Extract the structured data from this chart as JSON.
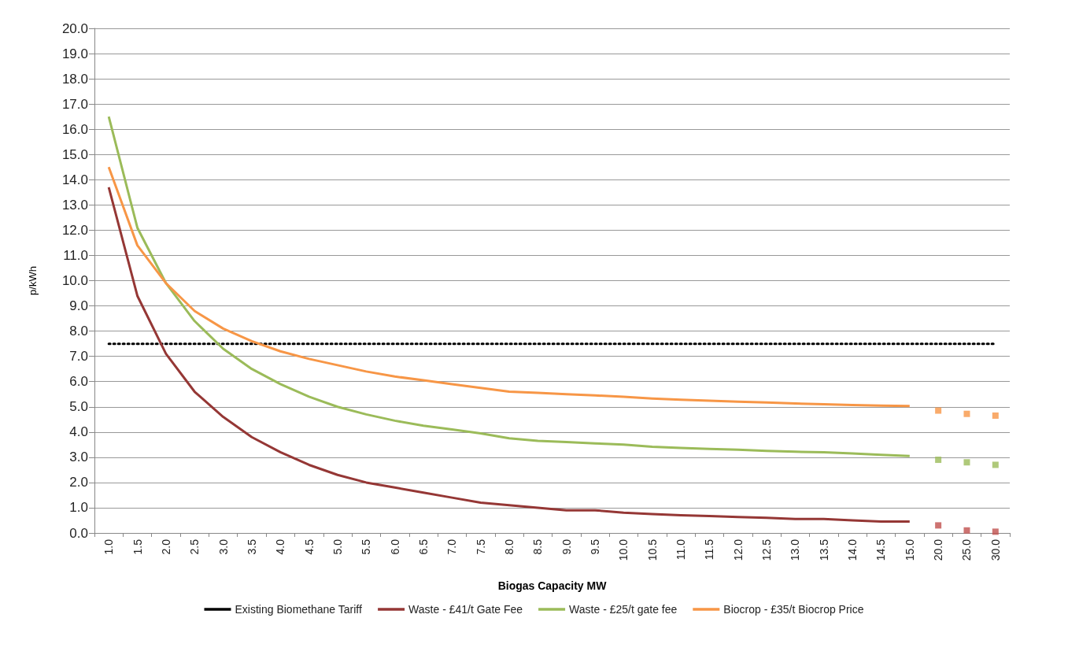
{
  "chart_data": {
    "type": "line",
    "xlabel": "Biogas Capacity MW",
    "ylabel": "p/kWh",
    "categories": [
      "1.0",
      "1.5",
      "2.0",
      "2.5",
      "3.0",
      "3.5",
      "4.0",
      "4.5",
      "5.0",
      "5.5",
      "6.0",
      "6.5",
      "7.0",
      "7.5",
      "8.0",
      "8.5",
      "9.0",
      "9.5",
      "10.0",
      "10.5",
      "11.0",
      "11.5",
      "12.0",
      "12.5",
      "13.0",
      "13.5",
      "14.0",
      "14.5",
      "15.0",
      "20.0",
      "25.0",
      "30.0"
    ],
    "ylim": [
      0,
      20
    ],
    "yticks": [
      {
        "value": 0,
        "label": "0.0"
      },
      {
        "value": 1,
        "label": "1.0"
      },
      {
        "value": 2,
        "label": "2.0"
      },
      {
        "value": 3,
        "label": "3.0"
      },
      {
        "value": 4,
        "label": "4.0"
      },
      {
        "value": 5,
        "label": "5.0"
      },
      {
        "value": 6,
        "label": "6.0"
      },
      {
        "value": 7,
        "label": "7.0"
      },
      {
        "value": 8,
        "label": "8.0"
      },
      {
        "value": 9,
        "label": "9.0"
      },
      {
        "value": 10,
        "label": "10.0"
      },
      {
        "value": 11,
        "label": "11.0"
      },
      {
        "value": 12,
        "label": "12.0"
      },
      {
        "value": 13,
        "label": "13.0"
      },
      {
        "value": 14,
        "label": "14.0"
      },
      {
        "value": 15,
        "label": "15.0"
      },
      {
        "value": 16,
        "label": "16.0"
      },
      {
        "value": 17,
        "label": "17.0"
      },
      {
        "value": 18,
        "label": "18.0"
      },
      {
        "value": 19,
        "label": "19.0"
      },
      {
        "value": 20,
        "label": "20.0"
      }
    ],
    "grid": "y",
    "legend": "bottom",
    "marker": "none",
    "series": [
      {
        "name": "Existing Biomethane Tariff",
        "color": "#000000",
        "line_style": "dotted",
        "values": [
          7.5,
          7.5,
          7.5,
          7.5,
          7.5,
          7.5,
          7.5,
          7.5,
          7.5,
          7.5,
          7.5,
          7.5,
          7.5,
          7.5,
          7.5,
          7.5,
          7.5,
          7.5,
          7.5,
          7.5,
          7.5,
          7.5,
          7.5,
          7.5,
          7.5,
          7.5,
          7.5,
          7.5,
          7.5,
          7.5,
          7.5,
          7.5
        ]
      },
      {
        "name": "Waste - £41/t Gate Fee",
        "color": "#953735",
        "values": [
          13.7,
          9.4,
          7.1,
          5.6,
          4.6,
          3.8,
          3.2,
          2.7,
          2.3,
          2.0,
          1.8,
          1.6,
          1.4,
          1.2,
          1.1,
          1.0,
          0.9,
          0.9,
          0.8,
          0.75,
          0.7,
          0.67,
          0.63,
          0.6,
          0.55,
          0.55,
          0.5,
          0.45,
          0.45,
          null,
          null,
          null
        ]
      },
      {
        "name": "Waste - £25/t gate fee",
        "color": "#9bbb59",
        "values": [
          16.5,
          12.1,
          9.9,
          8.4,
          7.3,
          6.5,
          5.9,
          5.4,
          5.0,
          4.7,
          4.45,
          4.25,
          4.1,
          3.95,
          3.75,
          3.65,
          3.6,
          3.55,
          3.5,
          3.42,
          3.37,
          3.33,
          3.3,
          3.25,
          3.22,
          3.2,
          3.15,
          3.1,
          3.05,
          null,
          null,
          null
        ]
      },
      {
        "name": "Biocrop - £35/t Biocrop Price",
        "color": "#f79646",
        "values": [
          14.5,
          11.4,
          9.9,
          8.8,
          8.1,
          7.6,
          7.2,
          6.9,
          6.65,
          6.4,
          6.2,
          6.05,
          5.9,
          5.75,
          5.6,
          5.55,
          5.5,
          5.45,
          5.4,
          5.33,
          5.28,
          5.24,
          5.2,
          5.17,
          5.13,
          5.1,
          5.07,
          5.05,
          5.03,
          null,
          null,
          null
        ]
      },
      {
        "type": "scatter",
        "marker": "square",
        "color": "#c0504d",
        "values": [
          null,
          null,
          null,
          null,
          null,
          null,
          null,
          null,
          null,
          null,
          null,
          null,
          null,
          null,
          null,
          null,
          null,
          null,
          null,
          null,
          null,
          null,
          null,
          null,
          null,
          null,
          null,
          null,
          null,
          0.3,
          0.1,
          0.05
        ]
      },
      {
        "type": "scatter",
        "marker": "square",
        "color": "#9bbb59",
        "values": [
          null,
          null,
          null,
          null,
          null,
          null,
          null,
          null,
          null,
          null,
          null,
          null,
          null,
          null,
          null,
          null,
          null,
          null,
          null,
          null,
          null,
          null,
          null,
          null,
          null,
          null,
          null,
          null,
          null,
          2.9,
          2.8,
          2.7
        ]
      },
      {
        "type": "scatter",
        "marker": "square",
        "color": "#f79646",
        "values": [
          null,
          null,
          null,
          null,
          null,
          null,
          null,
          null,
          null,
          null,
          null,
          null,
          null,
          null,
          null,
          null,
          null,
          null,
          null,
          null,
          null,
          null,
          null,
          null,
          null,
          null,
          null,
          null,
          null,
          4.85,
          4.72,
          4.65
        ]
      }
    ]
  }
}
